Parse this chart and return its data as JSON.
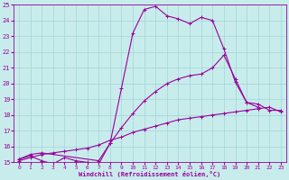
{
  "xlabel": "Windchill (Refroidissement éolien,°C)",
  "bg_color": "#c8ecec",
  "grid_color": "#a8d8d8",
  "line_color": "#990099",
  "xlim": [
    -0.5,
    23.5
  ],
  "ylim": [
    15,
    25
  ],
  "xticks": [
    0,
    1,
    2,
    3,
    4,
    5,
    6,
    7,
    8,
    9,
    10,
    11,
    12,
    13,
    14,
    15,
    16,
    17,
    18,
    19,
    20,
    21,
    22,
    23
  ],
  "yticks": [
    15,
    16,
    17,
    18,
    19,
    20,
    21,
    22,
    23,
    24,
    25
  ],
  "line1_x": [
    0,
    1,
    2,
    3,
    4,
    5,
    6,
    7,
    8,
    9,
    10,
    11,
    12,
    13,
    14,
    15,
    16,
    17,
    18,
    19,
    20,
    21
  ],
  "line1_y": [
    15.2,
    15.4,
    15.1,
    14.9,
    15.3,
    15.1,
    15.0,
    14.9,
    16.2,
    19.7,
    23.2,
    24.7,
    24.9,
    24.3,
    24.1,
    23.8,
    24.2,
    24.0,
    22.2,
    20.1,
    18.8,
    18.5
  ],
  "line2_x": [
    0,
    1,
    2,
    7,
    8,
    9,
    10,
    11,
    12,
    13,
    14,
    15,
    16,
    17,
    18,
    19,
    20,
    21,
    22,
    23
  ],
  "line2_y": [
    15.2,
    15.5,
    15.6,
    15.1,
    16.2,
    17.2,
    18.1,
    18.9,
    19.5,
    20.0,
    20.3,
    20.5,
    20.6,
    21.0,
    21.8,
    20.3,
    18.8,
    18.7,
    18.3,
    18.3
  ],
  "line3_x": [
    0,
    1,
    2,
    3,
    4,
    5,
    6,
    7,
    8,
    9,
    10,
    11,
    12,
    13,
    14,
    15,
    16,
    17,
    18,
    19,
    20,
    21,
    22,
    23
  ],
  "line3_y": [
    15.1,
    15.3,
    15.5,
    15.6,
    15.7,
    15.8,
    15.9,
    16.1,
    16.4,
    16.6,
    16.9,
    17.1,
    17.3,
    17.5,
    17.7,
    17.8,
    17.9,
    18.0,
    18.1,
    18.2,
    18.3,
    18.4,
    18.5,
    18.2
  ]
}
